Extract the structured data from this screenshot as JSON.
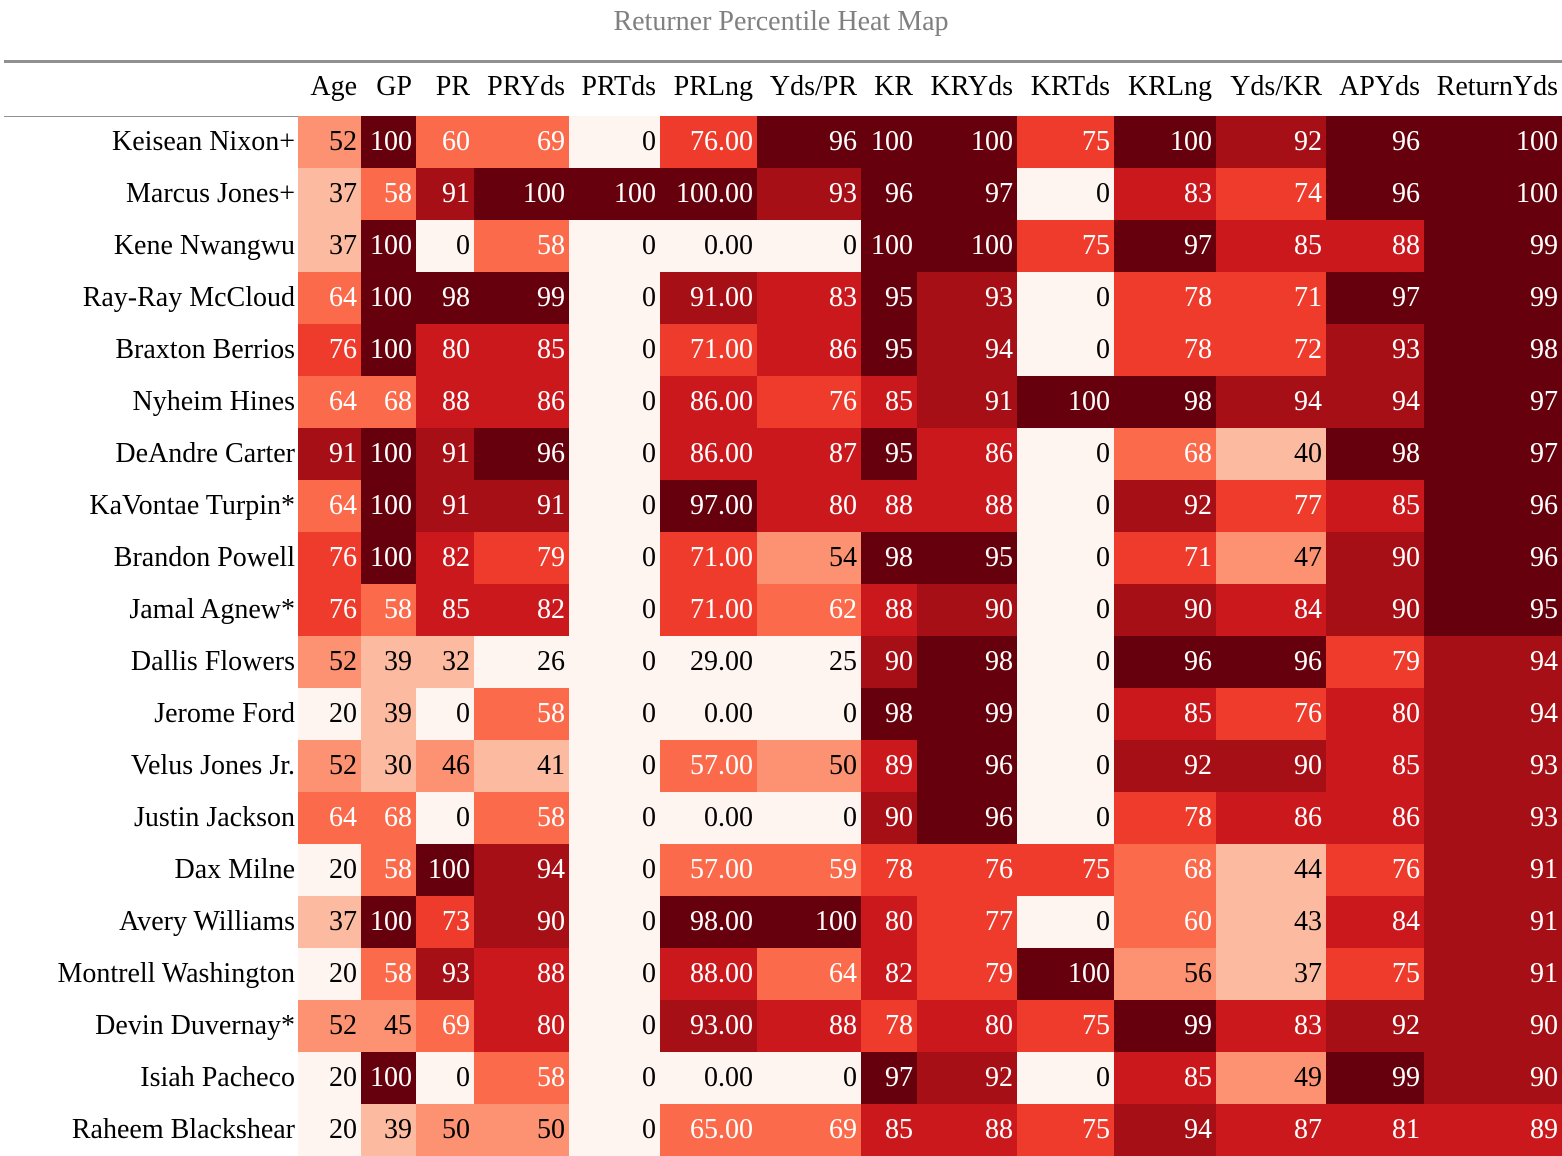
{
  "chart_data": {
    "type": "heatmap",
    "title": "Returner Percentile Heat Map",
    "columns": [
      "Age",
      "GP",
      "PR",
      "PRYds",
      "PRTds",
      "PRLng",
      "Yds/PR",
      "KR",
      "KRYds",
      "KRTds",
      "KRLng",
      "Yds/KR",
      "APYds",
      "ReturnYds"
    ],
    "rows": [
      {
        "name": "Keisean Nixon+",
        "values": [
          52,
          100,
          60,
          69,
          0,
          "76.00",
          96,
          100,
          100,
          75,
          100,
          92,
          96,
          100
        ]
      },
      {
        "name": "Marcus Jones+",
        "values": [
          37,
          58,
          91,
          100,
          100,
          "100.00",
          93,
          96,
          97,
          0,
          83,
          74,
          96,
          100
        ]
      },
      {
        "name": "Kene Nwangwu",
        "values": [
          37,
          100,
          0,
          58,
          0,
          "0.00",
          0,
          100,
          100,
          75,
          97,
          85,
          88,
          99
        ]
      },
      {
        "name": "Ray-Ray McCloud",
        "values": [
          64,
          100,
          98,
          99,
          0,
          "91.00",
          83,
          95,
          93,
          0,
          78,
          71,
          97,
          99
        ]
      },
      {
        "name": "Braxton Berrios",
        "values": [
          76,
          100,
          80,
          85,
          0,
          "71.00",
          86,
          95,
          94,
          0,
          78,
          72,
          93,
          98
        ]
      },
      {
        "name": "Nyheim Hines",
        "values": [
          64,
          68,
          88,
          86,
          0,
          "86.00",
          76,
          85,
          91,
          100,
          98,
          94,
          94,
          97
        ]
      },
      {
        "name": "DeAndre Carter",
        "values": [
          91,
          100,
          91,
          96,
          0,
          "86.00",
          87,
          95,
          86,
          0,
          68,
          40,
          98,
          97
        ]
      },
      {
        "name": "KaVontae Turpin*",
        "values": [
          64,
          100,
          91,
          91,
          0,
          "97.00",
          80,
          88,
          88,
          0,
          92,
          77,
          85,
          96
        ]
      },
      {
        "name": "Brandon Powell",
        "values": [
          76,
          100,
          82,
          79,
          0,
          "71.00",
          54,
          98,
          95,
          0,
          71,
          47,
          90,
          96
        ]
      },
      {
        "name": "Jamal Agnew*",
        "values": [
          76,
          58,
          85,
          82,
          0,
          "71.00",
          62,
          88,
          90,
          0,
          90,
          84,
          90,
          95
        ]
      },
      {
        "name": "Dallis Flowers",
        "values": [
          52,
          39,
          32,
          26,
          0,
          "29.00",
          25,
          90,
          98,
          0,
          96,
          96,
          79,
          94
        ]
      },
      {
        "name": "Jerome Ford",
        "values": [
          20,
          39,
          0,
          58,
          0,
          "0.00",
          0,
          98,
          99,
          0,
          85,
          76,
          80,
          94
        ]
      },
      {
        "name": "Velus Jones Jr.",
        "values": [
          52,
          30,
          46,
          41,
          0,
          "57.00",
          50,
          89,
          96,
          0,
          92,
          90,
          85,
          93
        ]
      },
      {
        "name": "Justin Jackson",
        "values": [
          64,
          68,
          0,
          58,
          0,
          "0.00",
          0,
          90,
          96,
          0,
          78,
          86,
          86,
          93
        ]
      },
      {
        "name": "Dax Milne",
        "values": [
          20,
          58,
          100,
          94,
          0,
          "57.00",
          59,
          78,
          76,
          75,
          68,
          44,
          76,
          91
        ]
      },
      {
        "name": "Avery Williams",
        "values": [
          37,
          100,
          73,
          90,
          0,
          "98.00",
          100,
          80,
          77,
          0,
          60,
          43,
          84,
          91
        ]
      },
      {
        "name": "Montrell Washington",
        "values": [
          20,
          58,
          93,
          88,
          0,
          "88.00",
          64,
          82,
          79,
          100,
          56,
          37,
          75,
          91
        ]
      },
      {
        "name": "Devin Duvernay*",
        "values": [
          52,
          45,
          69,
          80,
          0,
          "93.00",
          88,
          78,
          80,
          75,
          99,
          83,
          92,
          90
        ]
      },
      {
        "name": "Isiah Pacheco",
        "values": [
          20,
          100,
          0,
          58,
          0,
          "0.00",
          0,
          97,
          92,
          0,
          85,
          49,
          99,
          90
        ]
      },
      {
        "name": "Raheem Blackshear",
        "values": [
          20,
          39,
          50,
          50,
          0,
          "65.00",
          69,
          85,
          88,
          75,
          94,
          87,
          81,
          89
        ]
      }
    ]
  }
}
